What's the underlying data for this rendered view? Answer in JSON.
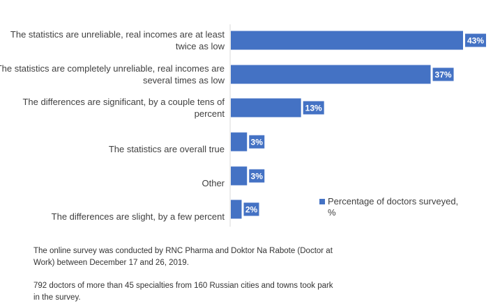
{
  "chart_data": {
    "type": "bar",
    "orientation": "horizontal",
    "categories": [
      "The statistics are unreliable, real incomes are at least twice as low",
      "The statistics are completely unreliable, real incomes are several times as low",
      "The differences are significant, by a couple tens of percent",
      "The statistics are overall true",
      "Other",
      "The differences are slight, by a few percent"
    ],
    "series": [
      {
        "name": "Percentage of doctors surveyed, %",
        "values": [
          43,
          37,
          13,
          3,
          3,
          2
        ],
        "labels": [
          "43%",
          "37%",
          "13%",
          "3%",
          "3%",
          "2%"
        ],
        "color": "#4472c4"
      }
    ],
    "xlim": [
      0,
      43
    ],
    "grid": false,
    "legend_position": "right"
  },
  "notes": {
    "line1": "The online survey was conducted by RNC Pharma and Doktor Na Rabote (Doctor at Work) between December 17 and 26, 2019.",
    "line2": "792 doctors of more than 45 specialties from 160 Russian cities and towns took park in the survey."
  }
}
